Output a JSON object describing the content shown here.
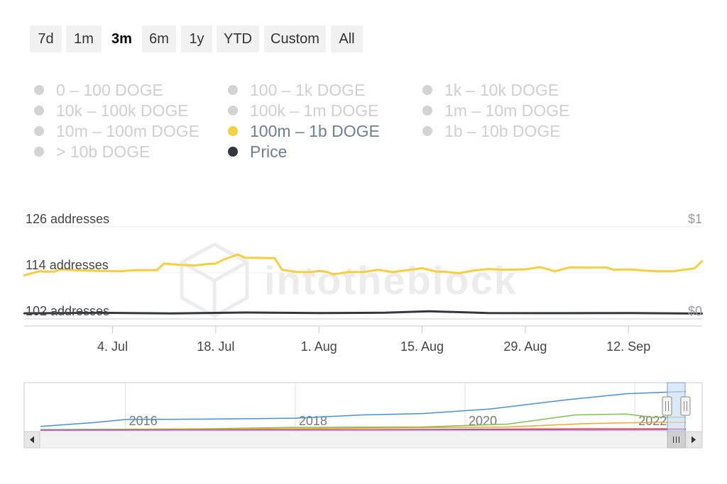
{
  "range_selector": {
    "buttons": [
      "7d",
      "1m",
      "3m",
      "6m",
      "1y",
      "YTD",
      "Custom",
      "All"
    ],
    "selected": "3m"
  },
  "legend": {
    "items": [
      {
        "label": "0 – 100 DOGE",
        "active": false,
        "color": "#d3d3d3"
      },
      {
        "label": "100 – 1k DOGE",
        "active": false,
        "color": "#d3d3d3"
      },
      {
        "label": "1k – 10k DOGE",
        "active": false,
        "color": "#d3d3d3"
      },
      {
        "label": "10k – 100k DOGE",
        "active": false,
        "color": "#d3d3d3"
      },
      {
        "label": "100k – 1m DOGE",
        "active": false,
        "color": "#d3d3d3"
      },
      {
        "label": "1m – 10m DOGE",
        "active": false,
        "color": "#d3d3d3"
      },
      {
        "label": "10m – 100m DOGE",
        "active": false,
        "color": "#d3d3d3"
      },
      {
        "label": "100m – 1b DOGE",
        "active": true,
        "color": "#f5cf3f"
      },
      {
        "label": "1b – 10b DOGE",
        "active": false,
        "color": "#d3d3d3"
      },
      {
        "label": "> 10b DOGE",
        "active": false,
        "color": "#d3d3d3"
      },
      {
        "label": "Price",
        "active": true,
        "color": "#33373d"
      }
    ]
  },
  "watermark": "intotheblock",
  "chart_data": [
    {
      "type": "line",
      "x_tick_labels": [
        "4. Jul",
        "18. Jul",
        "1. Aug",
        "15. Aug",
        "29. Aug",
        "12. Sep"
      ],
      "y_left_ticks": [
        "126 addresses",
        "114 addresses",
        "102 addresses"
      ],
      "y_left_values": [
        126,
        114,
        102
      ],
      "y_right_ticks": [
        "$1",
        "$0"
      ],
      "y_right_values": [
        1,
        0
      ],
      "ylim": [
        102,
        126
      ],
      "y_right_lim": [
        0,
        1
      ],
      "grid": true,
      "series": [
        {
          "name": "100m – 1b DOGE",
          "axis": "left",
          "color": "#f5cf3f",
          "points": [
            [
              "2022-06-22",
              113.3
            ],
            [
              "2022-06-24",
              114.4
            ],
            [
              "2022-06-26",
              114.3
            ],
            [
              "2022-06-27",
              114.9
            ],
            [
              "2022-06-30",
              114.6
            ],
            [
              "2022-07-02",
              114.5
            ],
            [
              "2022-07-05",
              114.4
            ],
            [
              "2022-07-07",
              114.7
            ],
            [
              "2022-07-10",
              114.7
            ],
            [
              "2022-07-11",
              116.4
            ],
            [
              "2022-07-13",
              116.1
            ],
            [
              "2022-07-15",
              115.9
            ],
            [
              "2022-07-17",
              116.3
            ],
            [
              "2022-07-18",
              116.4
            ],
            [
              "2022-07-19",
              117.4
            ],
            [
              "2022-07-21",
              118.8
            ],
            [
              "2022-07-22",
              117.9
            ],
            [
              "2022-07-24",
              117.9
            ],
            [
              "2022-07-26",
              117.8
            ],
            [
              "2022-07-27",
              114.8
            ],
            [
              "2022-07-29",
              114.2
            ],
            [
              "2022-07-31",
              114.2
            ],
            [
              "2022-08-01",
              114.5
            ],
            [
              "2022-08-02",
              114.3
            ],
            [
              "2022-08-03",
              113.6
            ],
            [
              "2022-08-05",
              114.2
            ],
            [
              "2022-08-07",
              114.2
            ],
            [
              "2022-08-09",
              114.8
            ],
            [
              "2022-08-11",
              114.2
            ],
            [
              "2022-08-13",
              114.7
            ],
            [
              "2022-08-15",
              115.2
            ],
            [
              "2022-08-17",
              114.3
            ],
            [
              "2022-08-18",
              114.3
            ],
            [
              "2022-08-20",
              113.9
            ],
            [
              "2022-08-22",
              114.6
            ],
            [
              "2022-08-24",
              115.0
            ],
            [
              "2022-08-26",
              114.8
            ],
            [
              "2022-08-29",
              114.9
            ],
            [
              "2022-08-31",
              115.5
            ],
            [
              "2022-09-02",
              114.4
            ],
            [
              "2022-09-04",
              115.4
            ],
            [
              "2022-09-06",
              115.4
            ],
            [
              "2022-09-09",
              115.4
            ],
            [
              "2022-09-10",
              114.8
            ],
            [
              "2022-09-12",
              114.9
            ],
            [
              "2022-09-14",
              114.6
            ],
            [
              "2022-09-16",
              114.4
            ],
            [
              "2022-09-18",
              114.4
            ],
            [
              "2022-09-20",
              114.9
            ],
            [
              "2022-09-21",
              115.2
            ],
            [
              "2022-09-22",
              117.1
            ]
          ]
        },
        {
          "name": "Price",
          "axis": "right",
          "color": "#33373d",
          "points": [
            [
              "2022-06-22",
              0.061
            ],
            [
              "2022-07-02",
              0.066
            ],
            [
              "2022-07-12",
              0.059
            ],
            [
              "2022-07-22",
              0.069
            ],
            [
              "2022-08-01",
              0.064
            ],
            [
              "2022-08-10",
              0.067
            ],
            [
              "2022-08-16",
              0.082
            ],
            [
              "2022-08-24",
              0.064
            ],
            [
              "2022-09-03",
              0.062
            ],
            [
              "2022-09-12",
              0.064
            ],
            [
              "2022-09-22",
              0.058
            ]
          ]
        }
      ]
    },
    {
      "type": "line",
      "role": "navigator",
      "x_tick_labels": [
        "2016",
        "2018",
        "2020",
        "2022"
      ],
      "series": [
        {
          "color": "#4a8fd1",
          "points": [
            [
              2015.0,
              0.08
            ],
            [
              2015.6,
              0.16
            ],
            [
              2016.0,
              0.23
            ],
            [
              2017.0,
              0.24
            ],
            [
              2018.0,
              0.26
            ],
            [
              2018.8,
              0.33
            ],
            [
              2019.5,
              0.36
            ],
            [
              2020.3,
              0.46
            ],
            [
              2021.2,
              0.66
            ],
            [
              2021.9,
              0.79
            ],
            [
              2022.3,
              0.82
            ],
            [
              2022.6,
              0.84
            ]
          ]
        },
        {
          "color": "#7fbf58",
          "points": [
            [
              2015.0,
              0.01
            ],
            [
              2017.0,
              0.03
            ],
            [
              2018.0,
              0.06
            ],
            [
              2019.5,
              0.07
            ],
            [
              2020.5,
              0.13
            ],
            [
              2021.3,
              0.33
            ],
            [
              2021.9,
              0.35
            ],
            [
              2022.2,
              0.28
            ],
            [
              2022.6,
              0.28
            ]
          ]
        },
        {
          "color": "#f0a431",
          "points": [
            [
              2015.0,
              0.0
            ],
            [
              2018.0,
              0.03
            ],
            [
              2020.5,
              0.07
            ],
            [
              2021.4,
              0.14
            ],
            [
              2022.2,
              0.17
            ],
            [
              2022.6,
              0.17
            ]
          ]
        },
        {
          "color": "#d9534f",
          "points": [
            [
              2015.0,
              0.0
            ],
            [
              2019.0,
              0.01
            ],
            [
              2021.4,
              0.03
            ],
            [
              2022.6,
              0.03
            ]
          ]
        },
        {
          "color": "#a05cc0",
          "points": [
            [
              2015.0,
              0.0
            ],
            [
              2021.4,
              0.005
            ],
            [
              2022.6,
              0.007
            ]
          ]
        }
      ]
    }
  ]
}
